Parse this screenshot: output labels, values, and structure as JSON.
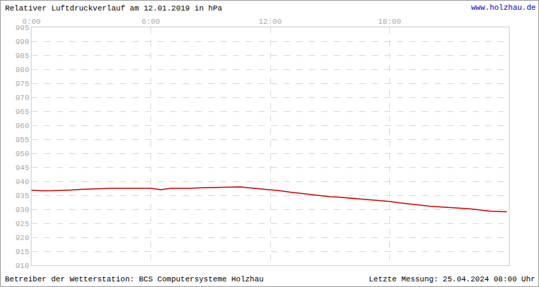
{
  "chart_data": {
    "type": "line",
    "title": "Relativer Luftdruckverlauf am 12.01.2019 in hPa",
    "annotations": [
      "www.holzhau.de",
      "Betreiber der Wetterstation: BCS Computersysteme Holzhau",
      "Letzte Messung: 25.04.2024 08:00 Uhr"
    ],
    "x": [
      0,
      0.5,
      1,
      1.5,
      2,
      2.5,
      3,
      3.5,
      4,
      4.5,
      5,
      5.5,
      6,
      6.5,
      7,
      7.5,
      8,
      8.5,
      9,
      9.5,
      10,
      10.5,
      11,
      11.5,
      12,
      12.5,
      13,
      13.5,
      14,
      14.5,
      15,
      15.5,
      16,
      16.5,
      17,
      17.5,
      18,
      18.5,
      19,
      19.5,
      20,
      20.5,
      21,
      21.5,
      22,
      22.5,
      23,
      23.5,
      23.9
    ],
    "values": [
      936.8,
      936.6,
      936.6,
      936.7,
      936.9,
      937.1,
      937.3,
      937.4,
      937.5,
      937.5,
      937.4,
      937.5,
      937.5,
      937.0,
      937.5,
      937.5,
      937.5,
      937.7,
      937.8,
      937.8,
      937.9,
      938.0,
      937.6,
      937.3,
      937.0,
      936.6,
      936.1,
      935.7,
      935.3,
      934.8,
      934.5,
      934.3,
      934.0,
      933.7,
      933.4,
      933.1,
      932.8,
      932.3,
      931.9,
      931.4,
      931.1,
      930.9,
      930.7,
      930.5,
      930.2,
      929.8,
      929.4,
      929.2,
      929.1
    ],
    "color": "#cc0000",
    "xlim": [
      0,
      24
    ],
    "xticks": [
      {
        "value": 0,
        "label": "0:00"
      },
      {
        "value": 6,
        "label": "6:00"
      },
      {
        "value": 12,
        "label": "12:00"
      },
      {
        "value": 18,
        "label": "18:00"
      }
    ],
    "ylim": [
      910,
      995
    ],
    "yticks": [
      910,
      915,
      920,
      925,
      930,
      935,
      940,
      945,
      950,
      955,
      960,
      965,
      970,
      975,
      980,
      985,
      990,
      995
    ],
    "grid": true
  }
}
